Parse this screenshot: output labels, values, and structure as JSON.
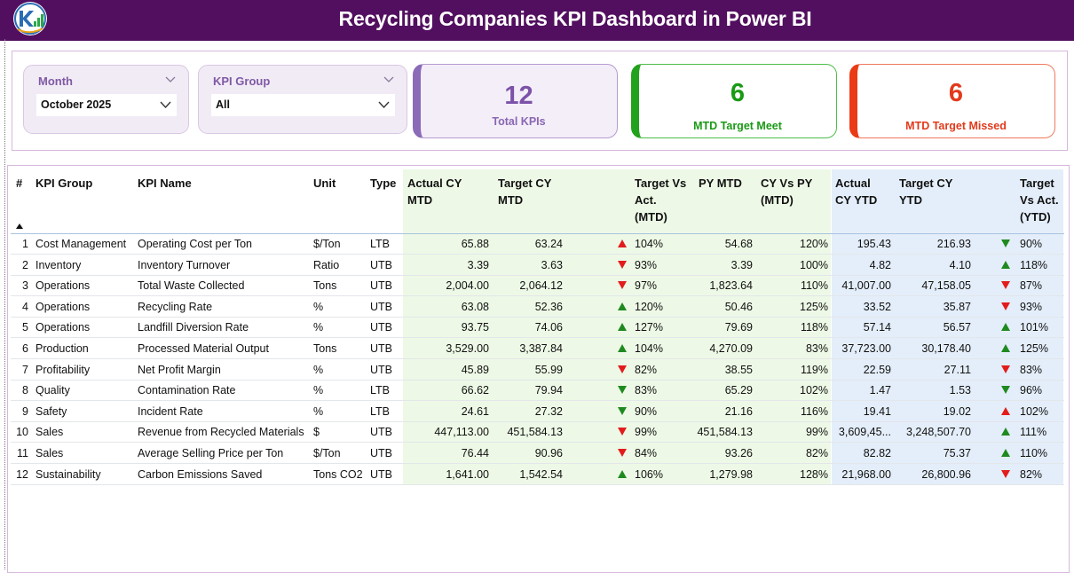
{
  "header": {
    "title": "Recycling Companies KPI Dashboard in Power BI"
  },
  "filters": {
    "month": {
      "label": "Month",
      "value": "October 2025"
    },
    "kpi_group": {
      "label": "KPI Group",
      "value": "All"
    }
  },
  "cards": {
    "total": {
      "value": "12",
      "label": "Total KPIs"
    },
    "meet": {
      "value": "6",
      "label": "MTD Target Meet"
    },
    "missed": {
      "value": "6",
      "label": "MTD Target Missed"
    }
  },
  "colors": {
    "header_bg": "#520f5f",
    "meet": "#1a9a14",
    "missed": "#e3391b",
    "total": "#7c52a9",
    "mtd_band": "#edf9e6",
    "ytd_band": "#e4eefa"
  },
  "table": {
    "columns": {
      "num": "#",
      "group": "KPI Group",
      "name": "KPI Name",
      "unit": "Unit",
      "type": "Type",
      "act_mtd": [
        "Actual CY",
        "MTD"
      ],
      "tgt_mtd": [
        "Target CY",
        "MTD"
      ],
      "tva_mtd": [
        "Target Vs",
        "Act.",
        "(MTD)"
      ],
      "py_mtd": [
        "PY MTD"
      ],
      "cyvpy": [
        "CY Vs PY",
        "(MTD)"
      ],
      "act_ytd": [
        "Actual",
        "CY YTD"
      ],
      "tgt_ytd": [
        "Target CY",
        "YTD"
      ],
      "tva_ytd": [
        "Target",
        "Vs Act.",
        "(YTD)"
      ]
    },
    "rows": [
      {
        "num": "1",
        "group": "Cost Management",
        "name": "Operating Cost per Ton",
        "unit": "$/Ton",
        "type": "LTB",
        "act_mtd": "65.88",
        "tgt_mtd": "63.24",
        "mtd_icon": "up-red",
        "tva_mtd": "104%",
        "py_mtd": "54.68",
        "cyvpy": "120%",
        "act_ytd": "195.43",
        "tgt_ytd": "216.93",
        "ytd_icon": "down-green",
        "tva_ytd": "90%"
      },
      {
        "num": "2",
        "group": "Inventory",
        "name": "Inventory Turnover",
        "unit": "Ratio",
        "type": "UTB",
        "act_mtd": "3.39",
        "tgt_mtd": "3.63",
        "mtd_icon": "down-red",
        "tva_mtd": "93%",
        "py_mtd": "3.39",
        "cyvpy": "100%",
        "act_ytd": "4.82",
        "tgt_ytd": "4.10",
        "ytd_icon": "up-green",
        "tva_ytd": "118%"
      },
      {
        "num": "3",
        "group": "Operations",
        "name": "Total Waste Collected",
        "unit": "Tons",
        "type": "UTB",
        "act_mtd": "2,004.00",
        "tgt_mtd": "2,064.12",
        "mtd_icon": "down-red",
        "tva_mtd": "97%",
        "py_mtd": "1,823.64",
        "cyvpy": "110%",
        "act_ytd": "41,007.00",
        "tgt_ytd": "47,158.05",
        "ytd_icon": "down-red",
        "tva_ytd": "87%"
      },
      {
        "num": "4",
        "group": "Operations",
        "name": "Recycling Rate",
        "unit": "%",
        "type": "UTB",
        "act_mtd": "63.08",
        "tgt_mtd": "52.36",
        "mtd_icon": "up-green",
        "tva_mtd": "120%",
        "py_mtd": "50.46",
        "cyvpy": "125%",
        "act_ytd": "33.52",
        "tgt_ytd": "35.87",
        "ytd_icon": "down-red",
        "tva_ytd": "93%"
      },
      {
        "num": "5",
        "group": "Operations",
        "name": "Landfill Diversion Rate",
        "unit": "%",
        "type": "UTB",
        "act_mtd": "93.75",
        "tgt_mtd": "74.06",
        "mtd_icon": "up-green",
        "tva_mtd": "127%",
        "py_mtd": "79.69",
        "cyvpy": "118%",
        "act_ytd": "57.14",
        "tgt_ytd": "56.57",
        "ytd_icon": "up-green",
        "tva_ytd": "101%"
      },
      {
        "num": "6",
        "group": "Production",
        "name": "Processed Material Output",
        "unit": "Tons",
        "type": "UTB",
        "act_mtd": "3,529.00",
        "tgt_mtd": "3,387.84",
        "mtd_icon": "up-green",
        "tva_mtd": "104%",
        "py_mtd": "4,270.09",
        "cyvpy": "83%",
        "act_ytd": "37,723.00",
        "tgt_ytd": "30,178.40",
        "ytd_icon": "up-green",
        "tva_ytd": "125%"
      },
      {
        "num": "7",
        "group": "Profitability",
        "name": "Net Profit Margin",
        "unit": "%",
        "type": "UTB",
        "act_mtd": "45.89",
        "tgt_mtd": "55.99",
        "mtd_icon": "down-red",
        "tva_mtd": "82%",
        "py_mtd": "38.55",
        "cyvpy": "119%",
        "act_ytd": "22.59",
        "tgt_ytd": "27.11",
        "ytd_icon": "down-red",
        "tva_ytd": "83%"
      },
      {
        "num": "8",
        "group": "Quality",
        "name": "Contamination Rate",
        "unit": "%",
        "type": "LTB",
        "act_mtd": "66.62",
        "tgt_mtd": "79.94",
        "mtd_icon": "down-green",
        "tva_mtd": "83%",
        "py_mtd": "65.29",
        "cyvpy": "102%",
        "act_ytd": "1.47",
        "tgt_ytd": "1.53",
        "ytd_icon": "down-green",
        "tva_ytd": "96%"
      },
      {
        "num": "9",
        "group": "Safety",
        "name": "Incident Rate",
        "unit": "%",
        "type": "LTB",
        "act_mtd": "24.61",
        "tgt_mtd": "27.32",
        "mtd_icon": "down-green",
        "tva_mtd": "90%",
        "py_mtd": "21.16",
        "cyvpy": "116%",
        "act_ytd": "19.41",
        "tgt_ytd": "19.02",
        "ytd_icon": "up-red",
        "tva_ytd": "102%"
      },
      {
        "num": "10",
        "group": "Sales",
        "name": "Revenue from Recycled Materials",
        "unit": "$",
        "type": "UTB",
        "act_mtd": "447,113.00",
        "tgt_mtd": "451,584.13",
        "mtd_icon": "down-red",
        "tva_mtd": "99%",
        "py_mtd": "451,584.13",
        "cyvpy": "99%",
        "act_ytd": "3,609,45...",
        "tgt_ytd": "3,248,507.70",
        "ytd_icon": "up-green",
        "tva_ytd": "111%"
      },
      {
        "num": "11",
        "group": "Sales",
        "name": "Average Selling Price per Ton",
        "unit": "$/Ton",
        "type": "UTB",
        "act_mtd": "76.44",
        "tgt_mtd": "90.96",
        "mtd_icon": "down-red",
        "tva_mtd": "84%",
        "py_mtd": "93.26",
        "cyvpy": "82%",
        "act_ytd": "82.82",
        "tgt_ytd": "75.37",
        "ytd_icon": "up-green",
        "tva_ytd": "110%"
      },
      {
        "num": "12",
        "group": "Sustainability",
        "name": "Carbon Emissions Saved",
        "unit": "Tons CO2",
        "type": "UTB",
        "act_mtd": "1,641.00",
        "tgt_mtd": "1,542.54",
        "mtd_icon": "up-green",
        "tva_mtd": "106%",
        "py_mtd": "1,279.98",
        "cyvpy": "128%",
        "act_ytd": "21,968.00",
        "tgt_ytd": "26,800.96",
        "ytd_icon": "down-red",
        "tva_ytd": "82%"
      }
    ]
  }
}
